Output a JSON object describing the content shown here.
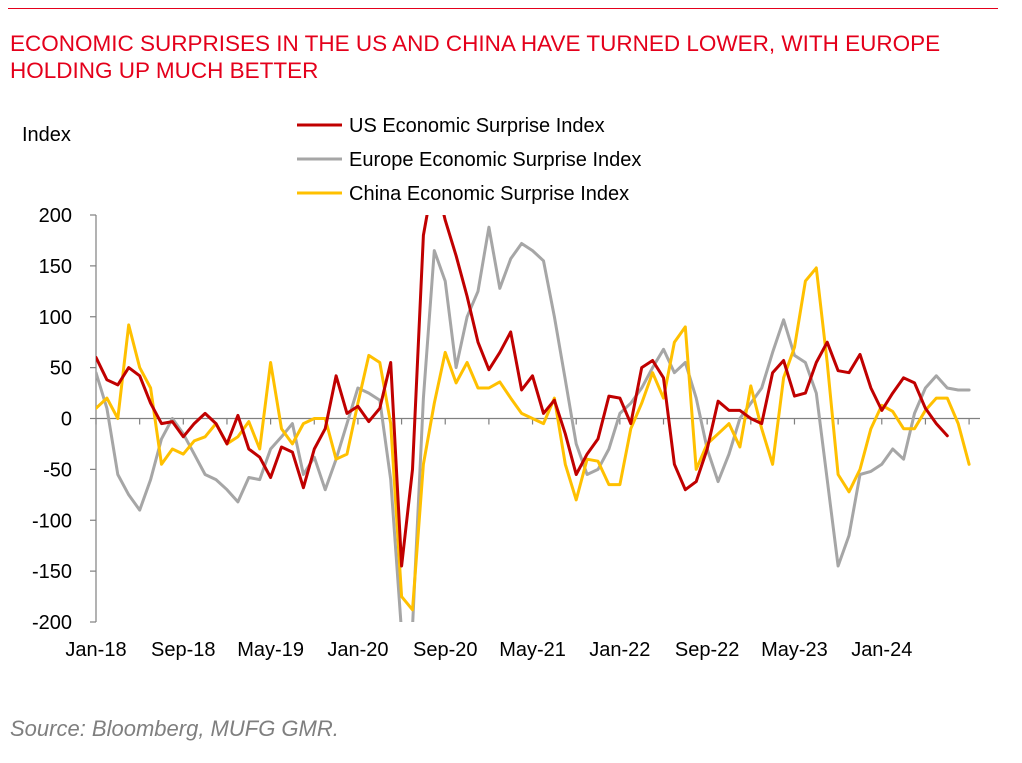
{
  "title": "ECONOMIC SURPRISES IN THE US AND CHINA HAVE TURNED LOWER, WITH EUROPE HOLDING UP MUCH BETTER",
  "source": "Source: Bloomberg, MUFG GMR.",
  "chart_data": {
    "type": "line",
    "ylabel": "Index",
    "ylim": [
      -200,
      200
    ],
    "yticks": [
      200,
      150,
      100,
      50,
      0,
      -50,
      -100,
      -150,
      -200
    ],
    "xlim": [
      "2018-01",
      "2024-10"
    ],
    "xticks": [
      "Jan-18",
      "Sep-18",
      "May-19",
      "Jan-20",
      "Sep-20",
      "May-21",
      "Jan-22",
      "Sep-22",
      "May-23",
      "Jan-24"
    ],
    "legend_position": "top-center",
    "grid": false,
    "start": "2018-01",
    "frequency": "monthly",
    "series": [
      {
        "name": "US Economic Surprise Index",
        "color": "#c00000",
        "values": [
          60,
          38,
          33,
          50,
          42,
          15,
          -5,
          -3,
          -18,
          -5,
          5,
          -5,
          -25,
          3,
          -30,
          -38,
          -58,
          -28,
          -33,
          -68,
          -30,
          -10,
          42,
          5,
          12,
          -3,
          10,
          55,
          -145,
          -50,
          180,
          240,
          195,
          160,
          120,
          75,
          48,
          65,
          85,
          28,
          42,
          5,
          18,
          -15,
          -55,
          -35,
          -20,
          22,
          20,
          -5,
          50,
          57,
          40,
          -45,
          -70,
          -62,
          -30,
          17,
          8,
          8,
          0,
          -5,
          45,
          57,
          22,
          25,
          55,
          75,
          47,
          45,
          63,
          30,
          8,
          25,
          40,
          35,
          10,
          -5,
          -17
        ]
      },
      {
        "name": "Europe Economic Surprise Index",
        "color": "#a6a6a6",
        "values": [
          45,
          10,
          -55,
          -75,
          -90,
          -60,
          -20,
          0,
          -15,
          -35,
          -55,
          -60,
          -70,
          -82,
          -58,
          -60,
          -30,
          -18,
          -5,
          -55,
          -38,
          -70,
          -40,
          -5,
          30,
          25,
          18,
          -60,
          -210,
          -205,
          20,
          165,
          135,
          50,
          100,
          125,
          188,
          128,
          157,
          172,
          165,
          155,
          100,
          38,
          -25,
          -55,
          -50,
          -30,
          5,
          15,
          30,
          50,
          68,
          45,
          55,
          20,
          -30,
          -62,
          -35,
          0,
          15,
          30,
          65,
          97,
          62,
          55,
          25,
          -60,
          -145,
          -115,
          -55,
          -52,
          -45,
          -30,
          -40,
          5,
          30,
          42,
          30,
          28,
          28
        ]
      },
      {
        "name": "China Economic Surprise Index",
        "color": "#ffc000",
        "values": [
          10,
          20,
          0,
          92,
          50,
          30,
          -45,
          -30,
          -35,
          -22,
          -18,
          -5,
          -25,
          -18,
          -3,
          -30,
          55,
          -10,
          -25,
          -5,
          0,
          0,
          -40,
          -35,
          15,
          62,
          55,
          -5,
          -175,
          -188,
          -45,
          15,
          65,
          35,
          55,
          30,
          30,
          36,
          20,
          5,
          0,
          -5,
          20,
          -45,
          -80,
          -40,
          -42,
          -65,
          -65,
          -10,
          15,
          45,
          20,
          75,
          90,
          -50,
          -25,
          -15,
          -5,
          -28,
          32,
          -10,
          -45,
          40,
          70,
          135,
          148,
          55,
          -55,
          -72,
          -50,
          -10,
          13,
          7,
          -10,
          -10,
          8,
          20,
          20,
          -5,
          -45
        ]
      }
    ]
  }
}
